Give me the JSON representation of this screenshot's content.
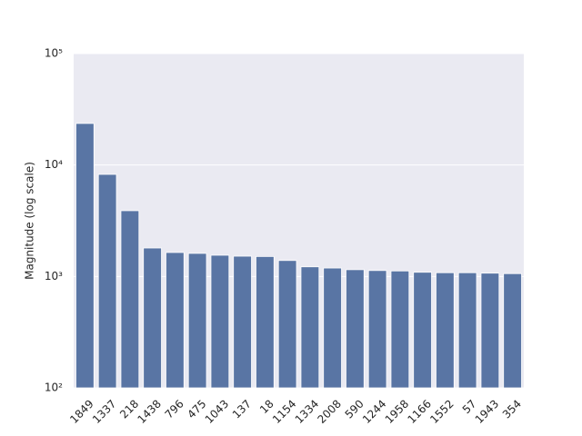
{
  "chart_data": {
    "type": "bar",
    "ylabel": "Magnitude (log scale)",
    "categories": [
      "1849",
      "1337",
      "218",
      "1438",
      "796",
      "475",
      "1043",
      "137",
      "18",
      "1154",
      "1334",
      "2008",
      "590",
      "1244",
      "1958",
      "1166",
      "1552",
      "57",
      "1943",
      "354"
    ],
    "values": [
      23600,
      8240,
      3890,
      1800,
      1640,
      1610,
      1550,
      1520,
      1510,
      1390,
      1220,
      1190,
      1150,
      1130,
      1120,
      1090,
      1080,
      1080,
      1070,
      1060
    ],
    "color": "#5975a4",
    "log_scale": true,
    "ylim": [
      100,
      100000
    ],
    "yticks": [
      {
        "value": 100,
        "label": "10²"
      },
      {
        "value": 1000,
        "label": "10³"
      },
      {
        "value": 10000,
        "label": "10⁴"
      },
      {
        "value": 100000,
        "label": "10⁵"
      }
    ],
    "grid": true
  }
}
